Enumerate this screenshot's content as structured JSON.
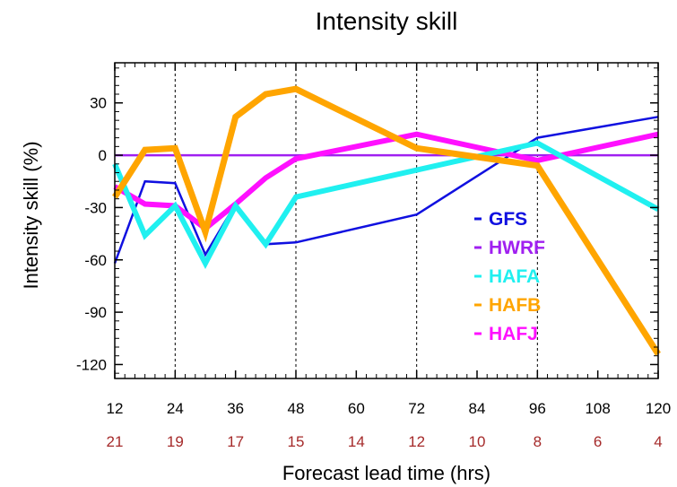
{
  "chart_data": {
    "type": "line",
    "title": "Intensity skill",
    "xlabel": "Forecast lead time (hrs)",
    "ylabel": "Intensity skill (%)",
    "xlim": [
      12,
      120
    ],
    "ylim": [
      -128,
      53
    ],
    "x_ticks": [
      12,
      24,
      36,
      48,
      60,
      72,
      84,
      96,
      108,
      120
    ],
    "y_ticks": [
      30,
      0,
      -30,
      -60,
      -90,
      -120
    ],
    "case_counts": [
      "21",
      "19",
      "17",
      "15",
      "14",
      "12",
      "10",
      "8",
      "6",
      "4"
    ],
    "vertical_gridlines_at": [
      24,
      48,
      72,
      96
    ],
    "zero_line": true,
    "legend_position": "lower-right inside plot",
    "series": [
      {
        "name": "GFS",
        "color": "#1010e0",
        "x": [
          12,
          18,
          24,
          30,
          36,
          42,
          48,
          72,
          96,
          120
        ],
        "y": [
          -62,
          -15,
          -16,
          -57,
          -28,
          -51,
          -50,
          -34,
          10,
          22
        ]
      },
      {
        "name": "HWRF",
        "color": "#a020f0",
        "x": [
          12,
          120
        ],
        "y": [
          0,
          0
        ]
      },
      {
        "name": "HAFA",
        "color": "#20f0f0",
        "x": [
          12,
          18,
          24,
          30,
          36,
          42,
          48,
          96,
          120
        ],
        "y": [
          -5,
          -46,
          -29,
          -62,
          -29,
          -51,
          -24,
          7,
          -31
        ]
      },
      {
        "name": "HAFB",
        "color": "#ffa500",
        "x": [
          12,
          18,
          24,
          30,
          36,
          42,
          48,
          72,
          96,
          120
        ],
        "y": [
          -24,
          3,
          4,
          -44,
          22,
          35,
          38,
          4,
          -6,
          -114
        ]
      },
      {
        "name": "HAFJ",
        "color": "#ff10ff",
        "x": [
          12,
          18,
          24,
          30,
          36,
          42,
          48,
          72,
          96,
          120
        ],
        "y": [
          -18,
          -28,
          -29,
          -42,
          -28,
          -13,
          -2,
          12,
          -3,
          12
        ]
      }
    ],
    "colors": {
      "count_label": "#a52a2a",
      "gridline": "#000000"
    }
  }
}
